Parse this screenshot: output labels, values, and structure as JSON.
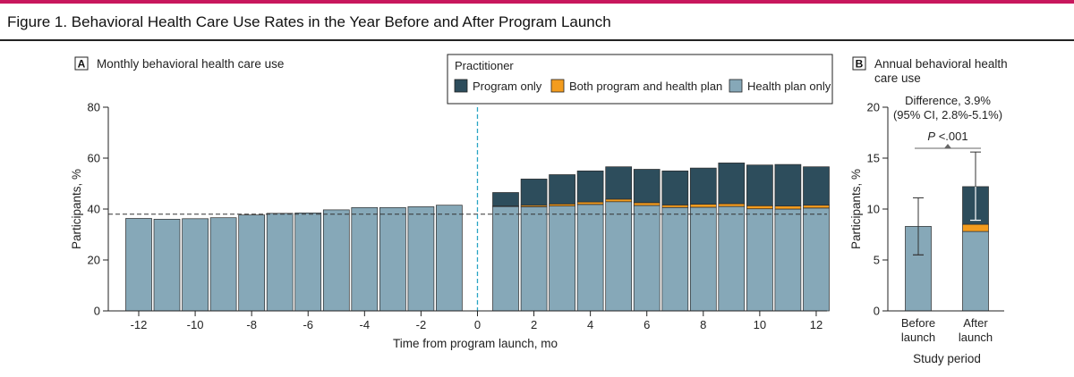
{
  "figure_title": "Figure 1. Behavioral Health Care Use Rates in the Year Before and After Program Launch",
  "colors": {
    "program_only": "#2d4d5c",
    "both": "#f39c1e",
    "health_plan_only": "#86a8b8",
    "divider_line": "#2aa5c4",
    "accent_bar": "#c8175d"
  },
  "chart_data": [
    {
      "panel": "A",
      "type": "bar",
      "stacked": true,
      "title": "Monthly behavioral health care use",
      "xlabel": "Time from program launch, mo",
      "ylabel": "Participants, %",
      "ylim": [
        0,
        80
      ],
      "yticks": [
        "0",
        "20",
        "40",
        "60",
        "80"
      ],
      "xticks": [
        "-12",
        "-10",
        "-8",
        "-6",
        "-4",
        "-2",
        "0",
        "2",
        "4",
        "6",
        "8",
        "10",
        "12"
      ],
      "x": [
        -12,
        -11,
        -10,
        -9,
        -8,
        -7,
        -6,
        -5,
        -4,
        -3,
        -2,
        -1,
        1,
        2,
        3,
        4,
        5,
        6,
        7,
        8,
        9,
        10,
        11,
        12
      ],
      "series": [
        {
          "name": "Health plan only",
          "values": [
            36.3,
            36.0,
            36.2,
            36.6,
            37.7,
            38.3,
            38.5,
            39.7,
            40.6,
            40.6,
            40.9,
            41.5,
            41.0,
            40.9,
            41.2,
            41.8,
            42.9,
            41.4,
            40.6,
            40.7,
            41.0,
            40.1,
            40.0,
            40.4
          ]
        },
        {
          "name": "Both program and health plan",
          "values": [
            0,
            0,
            0,
            0,
            0,
            0,
            0,
            0,
            0,
            0,
            0,
            0,
            0.2,
            0.6,
            0.8,
            1.0,
            1.0,
            1.1,
            1.0,
            1.2,
            1.1,
            1.2,
            1.2,
            1.1
          ]
        },
        {
          "name": "Program only",
          "values": [
            0,
            0,
            0,
            0,
            0,
            0,
            0,
            0,
            0,
            0,
            0,
            0,
            5.3,
            10.3,
            11.5,
            12.2,
            12.7,
            13.1,
            13.4,
            14.2,
            16.0,
            16.0,
            16.3,
            15.1
          ]
        }
      ],
      "reference_line": 38.0,
      "launch_marker_x": 0,
      "legend": {
        "title": "Practitioner",
        "placement": "top-right",
        "entries": [
          "Program only",
          "Both program and health plan",
          "Health plan only"
        ]
      }
    },
    {
      "panel": "B",
      "type": "bar",
      "stacked": true,
      "title_lines": [
        "Annual behavioral health",
        "care use"
      ],
      "xlabel": "Study period",
      "ylabel": "Participants, %",
      "ylim": [
        0,
        20
      ],
      "yticks": [
        "0",
        "5",
        "10",
        "15",
        "20"
      ],
      "categories": [
        [
          "Before",
          "launch"
        ],
        [
          "After",
          "launch"
        ]
      ],
      "series": [
        {
          "name": "Health plan only",
          "values": [
            8.3,
            7.8
          ]
        },
        {
          "name": "Both program and health plan",
          "values": [
            0,
            0.7
          ]
        },
        {
          "name": "Program only",
          "values": [
            0,
            3.7
          ]
        }
      ],
      "error_bars": [
        {
          "center": 8.3,
          "low": 5.5,
          "high": 11.1
        },
        {
          "center": 12.2,
          "low": 8.9,
          "high": 15.6
        }
      ],
      "annotation_lines": [
        "Difference, 3.9%",
        "(95% CI, 2.8%-5.1%)"
      ],
      "p_label": "P",
      "p_value": " <.001"
    }
  ]
}
